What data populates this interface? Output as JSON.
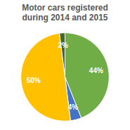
{
  "chart_data": {
    "type": "pie",
    "title": "Motor cars registered during 2014 and 2015",
    "values": [
      44,
      4,
      50,
      2
    ],
    "value_labels": [
      "44%",
      "4%",
      "50%",
      "2%"
    ],
    "colors": [
      "#70ad47",
      "#4472c4",
      "#ffc000",
      "#43682b"
    ],
    "data_labels": true
  }
}
